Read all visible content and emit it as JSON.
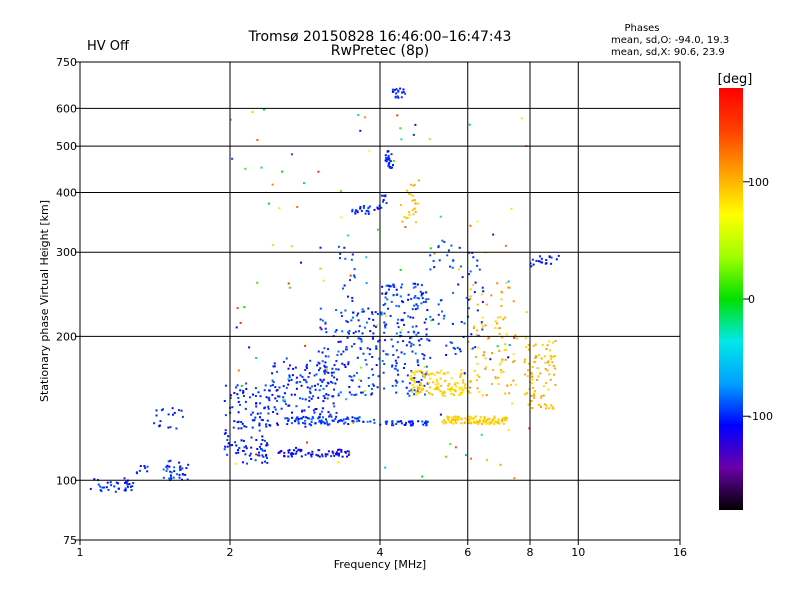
{
  "header": {
    "title_line1": "Tromsø 20150828 16:46:00–16:47:43",
    "title_line2": "RwPretec (8p)",
    "status": "HV Off",
    "status_color": "#ff0000"
  },
  "stats": {
    "heading": "Phases",
    "line_o": "mean, sd,O: -94.0, 19.3",
    "line_x": "mean, sd,X:  90.6, 23.9"
  },
  "colorbar": {
    "unit": "[deg]",
    "range": [
      -180,
      180
    ],
    "ticks": [
      {
        "value": 100,
        "label": "100"
      },
      {
        "value": 0,
        "label": "0"
      },
      {
        "value": -100,
        "label": "-100"
      }
    ],
    "stops": [
      "#000000",
      "#6a00a8",
      "#0000ff",
      "#00a0ff",
      "#00e8e8",
      "#00e000",
      "#a0ff00",
      "#ffff00",
      "#ffa000",
      "#ff4000",
      "#ff0000"
    ]
  },
  "chart_data": {
    "type": "scatter",
    "xlabel": "Frequency [MHz]",
    "ylabel": "Stationary phase Virtual Height [km]",
    "x_scale": "log",
    "y_scale": "log",
    "xlim": [
      1,
      16
    ],
    "ylim": [
      75,
      750
    ],
    "grid": true,
    "x_ticks": [
      {
        "value": 1,
        "label": "1"
      },
      {
        "value": 2,
        "label": "2"
      },
      {
        "value": 4,
        "label": "4"
      },
      {
        "value": 6,
        "label": "6"
      },
      {
        "value": 8,
        "label": "8"
      },
      {
        "value": 10,
        "label": "10"
      },
      {
        "value": 16,
        "label": "16"
      }
    ],
    "y_ticks": [
      {
        "value": 75,
        "label": "75"
      },
      {
        "value": 100,
        "label": "100"
      },
      {
        "value": 200,
        "label": "200"
      },
      {
        "value": 300,
        "label": "300"
      },
      {
        "value": 400,
        "label": "400"
      },
      {
        "value": 500,
        "label": "500"
      },
      {
        "value": 600,
        "label": "600"
      },
      {
        "value": 750,
        "label": "750"
      }
    ],
    "clusters": [
      {
        "x": [
          1.05,
          1.28
        ],
        "y": [
          94,
          101
        ],
        "phase": [
          -110,
          -90
        ],
        "n": 35
      },
      {
        "x": [
          1.3,
          1.38
        ],
        "y": [
          102,
          108
        ],
        "phase": [
          -110,
          -90
        ],
        "n": 8
      },
      {
        "x": [
          1.45,
          1.65
        ],
        "y": [
          100,
          110
        ],
        "phase": [
          -120,
          -80
        ],
        "n": 35
      },
      {
        "x": [
          1.4,
          1.62
        ],
        "y": [
          128,
          143
        ],
        "phase": [
          -110,
          -90
        ],
        "n": 18
      },
      {
        "x": [
          1.95,
          2.4
        ],
        "y": [
          112,
          160
        ],
        "phase": [
          -110,
          -90
        ],
        "n": 110
      },
      {
        "x": [
          2.1,
          2.4
        ],
        "y": [
          108,
          122
        ],
        "phase": [
          -120,
          -90
        ],
        "n": 25
      },
      {
        "x": [
          2.4,
          3.3
        ],
        "y": [
          130,
          180
        ],
        "phase": [
          -115,
          -85
        ],
        "n": 140
      },
      {
        "x": [
          2.5,
          3.5
        ],
        "y": [
          112,
          116
        ],
        "phase": [
          -125,
          -95
        ],
        "n": 70
      },
      {
        "x": [
          2.6,
          3.9
        ],
        "y": [
          131,
          136
        ],
        "phase": [
          -110,
          -80
        ],
        "n": 80
      },
      {
        "x": [
          3.0,
          4.0
        ],
        "y": [
          150,
          230
        ],
        "phase": [
          -110,
          -80
        ],
        "n": 150
      },
      {
        "x": [
          3.3,
          3.6
        ],
        "y": [
          235,
          310
        ],
        "phase": [
          -105,
          -85
        ],
        "n": 15
      },
      {
        "x": [
          3.5,
          3.9
        ],
        "y": [
          360,
          375
        ],
        "phase": [
          -110,
          -90
        ],
        "n": 20
      },
      {
        "x": [
          3.95,
          4.15
        ],
        "y": [
          370,
          395
        ],
        "phase": [
          -110,
          -90
        ],
        "n": 12
      },
      {
        "x": [
          4.0,
          5.0
        ],
        "y": [
          150,
          260
        ],
        "phase": [
          -110,
          -80
        ],
        "n": 180
      },
      {
        "x": [
          4.0,
          5.0
        ],
        "y": [
          130,
          133
        ],
        "phase": [
          -110,
          -90
        ],
        "n": 40
      },
      {
        "x": [
          4.1,
          4.25
        ],
        "y": [
          450,
          490
        ],
        "phase": [
          -110,
          -90
        ],
        "n": 25
      },
      {
        "x": [
          4.2,
          4.5
        ],
        "y": [
          630,
          660
        ],
        "phase": [
          -110,
          -90
        ],
        "n": 18
      },
      {
        "x": [
          4.4,
          4.8
        ],
        "y": [
          340,
          420
        ],
        "phase": [
          85,
          110
        ],
        "n": 25
      },
      {
        "x": [
          4.6,
          6.0
        ],
        "y": [
          150,
          170
        ],
        "phase": [
          80,
          100
        ],
        "n": 120
      },
      {
        "x": [
          5.3,
          7.2
        ],
        "y": [
          131,
          136
        ],
        "phase": [
          80,
          100
        ],
        "n": 110
      },
      {
        "x": [
          6.0,
          7.5
        ],
        "y": [
          150,
          260
        ],
        "phase": [
          80,
          120
        ],
        "n": 90
      },
      {
        "x": [
          7.8,
          9.0
        ],
        "y": [
          140,
          200
        ],
        "phase": [
          85,
          110
        ],
        "n": 90
      },
      {
        "x": [
          8.0,
          9.2
        ],
        "y": [
          280,
          295
        ],
        "phase": [
          -110,
          -90
        ],
        "n": 20
      },
      {
        "x": [
          5.0,
          6.5
        ],
        "y": [
          180,
          320
        ],
        "phase": [
          -110,
          -80
        ],
        "n": 70
      },
      {
        "x": [
          2.0,
          8.0
        ],
        "y": [
          100,
          620
        ],
        "phase": [
          -150,
          170
        ],
        "n": 120
      }
    ]
  }
}
